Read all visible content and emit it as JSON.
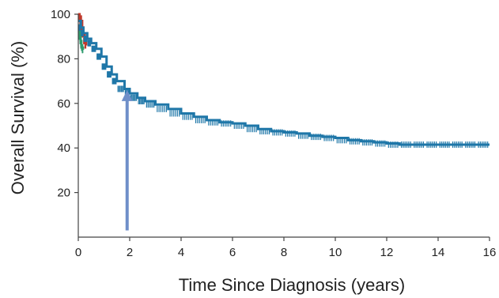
{
  "chart_data": {
    "type": "line",
    "title": "",
    "xlabel": "Time Since Diagnosis (years)",
    "ylabel": "Overall Survival (%)",
    "xlim": [
      0,
      16
    ],
    "ylim": [
      0,
      100
    ],
    "x_ticks": [
      0,
      2,
      4,
      6,
      8,
      10,
      12,
      14,
      16
    ],
    "y_ticks": [
      20,
      40,
      60,
      80,
      100
    ],
    "grid": false,
    "legend": "none",
    "series": [
      {
        "color": "#1f77a8",
        "censor_marks": true,
        "x": [
          0,
          0.1,
          0.2,
          0.35,
          0.5,
          0.7,
          0.9,
          1.1,
          1.3,
          1.5,
          1.8,
          2.0,
          2.3,
          2.6,
          3.0,
          3.5,
          4.0,
          4.5,
          5.0,
          5.5,
          6.0,
          6.5,
          7.0,
          7.5,
          8.0,
          8.5,
          9.0,
          9.5,
          10.0,
          10.5,
          11.0,
          11.5,
          12.0,
          12.5,
          13.0,
          13.5,
          14.0,
          14.5,
          15.0,
          15.5,
          16.0
        ],
        "y": [
          97,
          94,
          91.5,
          89,
          87,
          84.5,
          81,
          76.5,
          73,
          70,
          66.5,
          64.5,
          62.5,
          61,
          59.5,
          57.5,
          55.5,
          54,
          52.5,
          51.5,
          51,
          50,
          48.5,
          47.5,
          47,
          46.5,
          45.5,
          45,
          44.5,
          43.5,
          43,
          42.5,
          42,
          41.5,
          41.5,
          41.5,
          41.5,
          41.5,
          41.5,
          41.5,
          41.5
        ]
      },
      {
        "color": "#c0392b",
        "censor_marks": true,
        "x": [
          0,
          0.05,
          0.1,
          0.15,
          0.2,
          0.25,
          0.3
        ],
        "y": [
          100,
          99,
          97,
          94,
          91,
          88,
          86
        ]
      },
      {
        "color": "#2e9b6e",
        "censor_marks": true,
        "x": [
          0,
          0.03,
          0.06,
          0.09,
          0.12,
          0.15,
          0.18
        ],
        "y": [
          95,
          92,
          90,
          88,
          86,
          85,
          84
        ]
      }
    ],
    "annotations": [
      {
        "type": "arrow",
        "x": 1.9,
        "y_from": 3,
        "y_to": 66,
        "color": "#6f8fc9"
      }
    ]
  }
}
